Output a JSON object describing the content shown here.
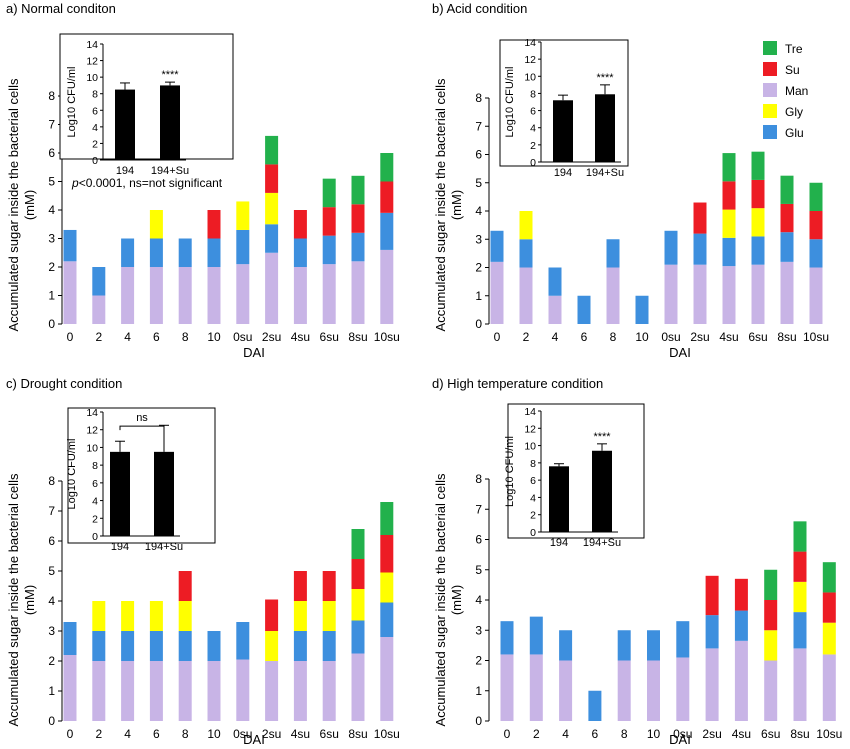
{
  "legend": [
    {
      "name": "Tre",
      "color": "#22b14c"
    },
    {
      "name": "Su",
      "color": "#ed1c24"
    },
    {
      "name": "Man",
      "color": "#c8b4e6"
    },
    {
      "name": "Gly",
      "color": "#ffff00"
    },
    {
      "name": "Glu",
      "color": "#3d8fde"
    }
  ],
  "chart_data": [
    {
      "panel": "a",
      "type": "bar",
      "stacked": true,
      "title": "a) Normal conditon",
      "xlabel": "DAI",
      "ylabel": "Accumulated sugar inside the bacterial cells (mM)",
      "ylim": [
        0,
        8
      ],
      "yticks": [
        "0",
        "1",
        "2",
        "3",
        "4",
        "5",
        "6",
        "7",
        "8"
      ],
      "categories": [
        "0",
        "2",
        "4",
        "6",
        "8",
        "10",
        "0su",
        "2su",
        "4su",
        "6su",
        "8su",
        "10su"
      ],
      "series": [
        {
          "name": "Man",
          "values": [
            2.2,
            1.0,
            2.0,
            2.0,
            2.0,
            2.0,
            2.1,
            2.5,
            2.0,
            2.1,
            2.2,
            2.6
          ]
        },
        {
          "name": "Glu",
          "values": [
            1.1,
            1.0,
            1.0,
            1.0,
            1.0,
            1.0,
            1.2,
            1.0,
            1.0,
            1.0,
            1.0,
            1.3
          ]
        },
        {
          "name": "Gly",
          "values": [
            0,
            0,
            0,
            1.0,
            0,
            0,
            1.0,
            1.1,
            0,
            0,
            0,
            0
          ]
        },
        {
          "name": "Su",
          "values": [
            0,
            0,
            0,
            0,
            0,
            1.0,
            0,
            1.0,
            1.0,
            1.0,
            1.0,
            1.1
          ]
        },
        {
          "name": "Tre",
          "values": [
            0,
            0,
            0,
            0,
            0,
            0,
            0,
            1.0,
            0,
            1.0,
            1.0,
            1.0
          ]
        }
      ],
      "inset": {
        "ylabel": "Log10 CFU/ml",
        "ylim": [
          0,
          14
        ],
        "yticks": [
          "0",
          "2",
          "4",
          "6",
          "8",
          "10",
          "12",
          "14"
        ],
        "categories": [
          "194",
          "194+Su"
        ],
        "values": [
          8.5,
          9.0
        ],
        "errors": [
          0.8,
          0.4
        ],
        "significance": "****",
        "bracket": false
      },
      "note_italic": "p",
      "note": "<0.0001, ns=not significant"
    },
    {
      "panel": "b",
      "type": "bar",
      "stacked": true,
      "title": "b) Acid condition",
      "xlabel": "DAI",
      "ylabel": "Accumulated sugar inside the bacterial cells (mM)",
      "ylim": [
        0,
        8
      ],
      "yticks": [
        "0",
        "1",
        "2",
        "3",
        "4",
        "5",
        "6",
        "7",
        "8"
      ],
      "categories": [
        "0",
        "2",
        "4",
        "6",
        "8",
        "10",
        "0su",
        "2su",
        "4su",
        "6su",
        "8su",
        "10su"
      ],
      "series": [
        {
          "name": "Man",
          "values": [
            2.2,
            2.0,
            1.0,
            0,
            2.0,
            0,
            2.1,
            2.1,
            2.05,
            2.1,
            2.2,
            2.0
          ]
        },
        {
          "name": "Glu",
          "values": [
            1.1,
            1.0,
            1.0,
            1.0,
            1.0,
            1.0,
            1.2,
            1.1,
            1.0,
            1.0,
            1.05,
            1.0
          ]
        },
        {
          "name": "Gly",
          "values": [
            0,
            1.0,
            0,
            0,
            0,
            0,
            0,
            0,
            1.0,
            1.0,
            0,
            0
          ]
        },
        {
          "name": "Su",
          "values": [
            0,
            0,
            0,
            0,
            0,
            0,
            0,
            1.1,
            1.0,
            1.0,
            1.0,
            1.0
          ]
        },
        {
          "name": "Tre",
          "values": [
            0,
            0,
            0,
            0,
            0,
            0,
            0,
            0,
            1.0,
            1.0,
            1.0,
            1.0
          ]
        }
      ],
      "inset": {
        "ylabel": "Log10 CFU/ml",
        "ylim": [
          0,
          14
        ],
        "yticks": [
          "0",
          "2",
          "4",
          "6",
          "8",
          "10",
          "12",
          "14"
        ],
        "categories": [
          "194",
          "194+Su"
        ],
        "values": [
          7.2,
          7.9
        ],
        "errors": [
          0.6,
          1.1
        ],
        "significance": "****",
        "bracket": false
      }
    },
    {
      "panel": "c",
      "type": "bar",
      "stacked": true,
      "title": "c) Drought condition",
      "xlabel": "DAI",
      "ylabel": "Accumulated sugar inside the bacterial cells (mM)",
      "ylim": [
        0,
        8
      ],
      "yticks": [
        "0",
        "1",
        "2",
        "3",
        "4",
        "5",
        "6",
        "7",
        "8"
      ],
      "categories": [
        "0",
        "2",
        "4",
        "6",
        "8",
        "10",
        "0su",
        "2su",
        "4su",
        "6su",
        "8su",
        "10su"
      ],
      "series": [
        {
          "name": "Man",
          "values": [
            2.2,
            2.0,
            2.0,
            2.0,
            2.0,
            2.0,
            2.05,
            2.0,
            2.0,
            2.0,
            2.25,
            2.8
          ]
        },
        {
          "name": "Glu",
          "values": [
            1.1,
            1.0,
            1.0,
            1.0,
            1.0,
            1.0,
            1.25,
            0,
            1.0,
            1.0,
            1.1,
            1.15
          ]
        },
        {
          "name": "Gly",
          "values": [
            0,
            1.0,
            1.0,
            1.0,
            1.0,
            0,
            0,
            1.0,
            1.0,
            1.0,
            1.05,
            1.0
          ]
        },
        {
          "name": "Su",
          "values": [
            0,
            0,
            0,
            0,
            1.0,
            0,
            0,
            1.05,
            1.0,
            1.0,
            1.0,
            1.25
          ]
        },
        {
          "name": "Tre",
          "values": [
            0,
            0,
            0,
            0,
            0,
            0,
            0,
            0,
            0,
            0,
            1.0,
            1.1
          ]
        }
      ],
      "inset": {
        "ylabel": "Log10 CFU/ml",
        "ylim": [
          0,
          14
        ],
        "yticks": [
          "0",
          "2",
          "4",
          "6",
          "8",
          "10",
          "12",
          "14"
        ],
        "categories": [
          "194",
          "194+Su"
        ],
        "values": [
          9.5,
          9.5
        ],
        "errors": [
          1.2,
          3.0
        ],
        "significance": "ns",
        "bracket": true
      }
    },
    {
      "panel": "d",
      "type": "bar",
      "stacked": true,
      "title": "d) High temperature condition",
      "xlabel": "DAI",
      "ylabel": "Accumulated sugar inside the bacterial cells (mM)",
      "ylim": [
        0,
        8
      ],
      "yticks": [
        "0",
        "1",
        "2",
        "3",
        "4",
        "5",
        "6",
        "7",
        "8"
      ],
      "categories": [
        "0",
        "2",
        "4",
        "6",
        "8",
        "10",
        "0su",
        "2su",
        "4su",
        "6su",
        "8su",
        "10su"
      ],
      "series": [
        {
          "name": "Man",
          "values": [
            2.2,
            2.2,
            2.0,
            0,
            2.0,
            2.0,
            2.1,
            2.4,
            2.65,
            2.0,
            2.4,
            2.2
          ]
        },
        {
          "name": "Glu",
          "values": [
            1.1,
            1.25,
            1.0,
            1.0,
            1.0,
            1.0,
            1.2,
            1.1,
            1.0,
            0,
            1.2,
            0
          ]
        },
        {
          "name": "Gly",
          "values": [
            0,
            0,
            0,
            0,
            0,
            0,
            0,
            0,
            0,
            1.0,
            1.0,
            1.05
          ]
        },
        {
          "name": "Su",
          "values": [
            0,
            0,
            0,
            0,
            0,
            0,
            0,
            1.3,
            1.05,
            1.0,
            1.0,
            1.0
          ]
        },
        {
          "name": "Tre",
          "values": [
            0,
            0,
            0,
            0,
            0,
            0,
            0,
            0,
            0,
            1.0,
            1.0,
            1.0
          ]
        }
      ],
      "inset": {
        "ylabel": "Log10 CFU/ml",
        "ylim": [
          0,
          14
        ],
        "yticks": [
          "0",
          "2",
          "4",
          "6",
          "8",
          "10",
          "12",
          "14"
        ],
        "categories": [
          "194",
          "194+Su"
        ],
        "values": [
          7.6,
          9.4
        ],
        "errors": [
          0.3,
          0.8
        ],
        "significance": "****",
        "bracket": false
      }
    }
  ]
}
